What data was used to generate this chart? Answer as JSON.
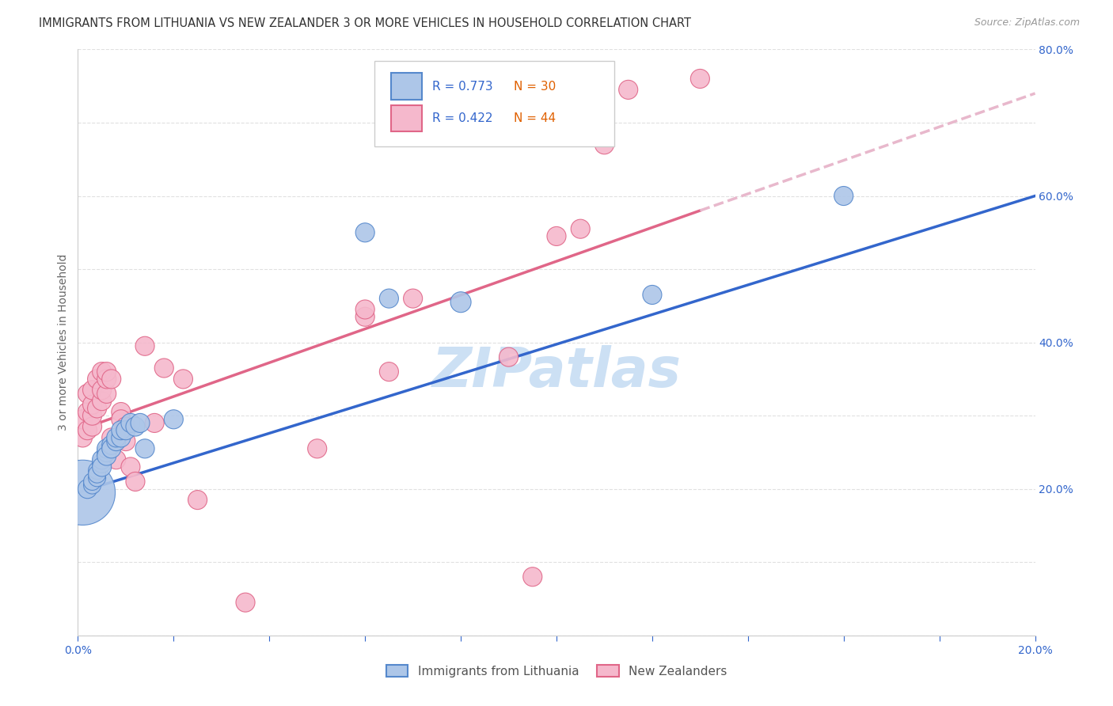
{
  "title": "IMMIGRANTS FROM LITHUANIA VS NEW ZEALANDER 3 OR MORE VEHICLES IN HOUSEHOLD CORRELATION CHART",
  "source": "Source: ZipAtlas.com",
  "ylabel": "3 or more Vehicles in Household",
  "xlim": [
    0.0,
    0.2
  ],
  "ylim": [
    0.0,
    0.8
  ],
  "background_color": "#ffffff",
  "grid_color": "#dddddd",
  "watermark": "ZIPatlas",
  "watermark_color": "#aaccee",
  "series1_color": "#adc6e8",
  "series1_edge_color": "#5588cc",
  "series2_color": "#f5b8cc",
  "series2_edge_color": "#e06688",
  "line1_color": "#3366cc",
  "line2_color": "#e06688",
  "line2_dash_color": "#e8b8cc",
  "legend_R1": "R = 0.773",
  "legend_N1": "30",
  "legend_R2": "R = 0.422",
  "legend_N2": "44",
  "series1_x": [
    0.001,
    0.002,
    0.003,
    0.003,
    0.004,
    0.004,
    0.004,
    0.005,
    0.005,
    0.005,
    0.006,
    0.006,
    0.006,
    0.007,
    0.007,
    0.008,
    0.008,
    0.009,
    0.009,
    0.01,
    0.011,
    0.012,
    0.013,
    0.014,
    0.06,
    0.065,
    0.08,
    0.12,
    0.16,
    0.02
  ],
  "series1_y": [
    0.195,
    0.2,
    0.205,
    0.21,
    0.215,
    0.225,
    0.22,
    0.235,
    0.24,
    0.23,
    0.25,
    0.255,
    0.245,
    0.26,
    0.255,
    0.265,
    0.27,
    0.27,
    0.28,
    0.28,
    0.29,
    0.285,
    0.29,
    0.255,
    0.55,
    0.46,
    0.455,
    0.465,
    0.6,
    0.295
  ],
  "series1_size": [
    350,
    30,
    25,
    25,
    25,
    25,
    25,
    30,
    30,
    30,
    30,
    30,
    30,
    30,
    30,
    30,
    30,
    30,
    30,
    30,
    30,
    30,
    30,
    30,
    30,
    30,
    35,
    30,
    30,
    30
  ],
  "series2_x": [
    0.001,
    0.001,
    0.002,
    0.002,
    0.002,
    0.003,
    0.003,
    0.003,
    0.003,
    0.004,
    0.004,
    0.005,
    0.005,
    0.005,
    0.006,
    0.006,
    0.006,
    0.007,
    0.007,
    0.008,
    0.009,
    0.009,
    0.01,
    0.01,
    0.011,
    0.012,
    0.014,
    0.016,
    0.018,
    0.022,
    0.025,
    0.035,
    0.05,
    0.06,
    0.065,
    0.07,
    0.09,
    0.095,
    0.1,
    0.105,
    0.11,
    0.115,
    0.13,
    0.06
  ],
  "series2_y": [
    0.27,
    0.295,
    0.28,
    0.305,
    0.33,
    0.285,
    0.3,
    0.315,
    0.335,
    0.31,
    0.35,
    0.32,
    0.335,
    0.36,
    0.33,
    0.35,
    0.36,
    0.27,
    0.35,
    0.24,
    0.305,
    0.295,
    0.285,
    0.265,
    0.23,
    0.21,
    0.395,
    0.29,
    0.365,
    0.35,
    0.185,
    0.045,
    0.255,
    0.435,
    0.36,
    0.46,
    0.38,
    0.08,
    0.545,
    0.555,
    0.67,
    0.745,
    0.76,
    0.445
  ],
  "series2_size": [
    30,
    30,
    30,
    30,
    30,
    30,
    30,
    30,
    30,
    30,
    30,
    30,
    30,
    30,
    30,
    30,
    30,
    30,
    30,
    30,
    30,
    30,
    30,
    30,
    30,
    30,
    30,
    30,
    30,
    30,
    30,
    30,
    30,
    30,
    30,
    30,
    30,
    30,
    30,
    30,
    30,
    30,
    30,
    30
  ],
  "line1_x0": 0.0,
  "line1_y0": 0.195,
  "line1_x1": 0.2,
  "line1_y1": 0.6,
  "line2_x0": 0.0,
  "line2_y0": 0.28,
  "line2_x1": 0.13,
  "line2_y1": 0.58,
  "line2_dash_x0": 0.13,
  "line2_dash_y0": 0.58,
  "line2_dash_x1": 0.2,
  "line2_dash_y1": 0.74
}
